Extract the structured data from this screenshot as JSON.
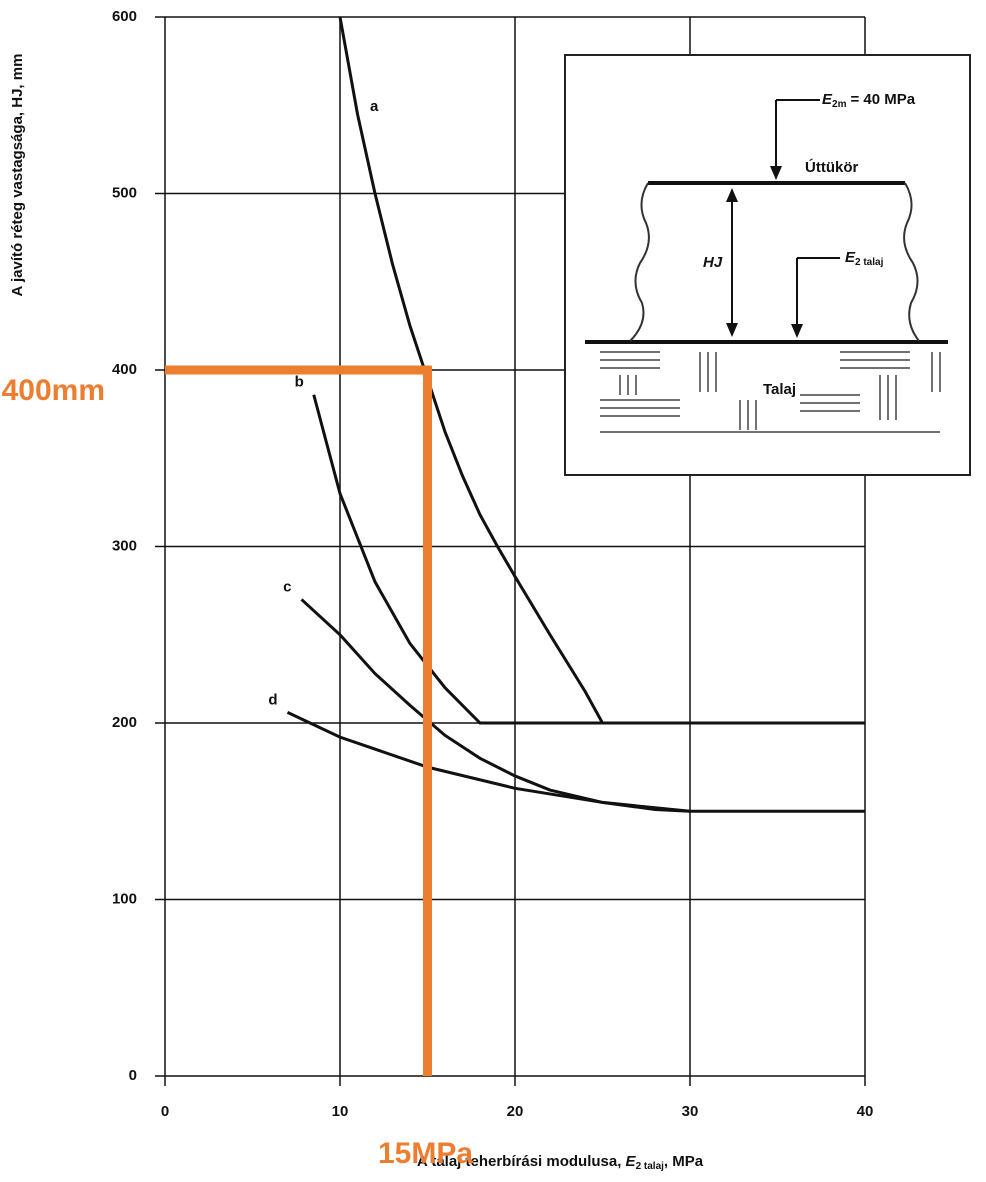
{
  "chart_data": {
    "type": "line",
    "ylabel": "A javító réteg vastagsága, HJ, mm",
    "xlabel": {
      "text": "A talaj teherbírási modulusa, ",
      "symbol": "E",
      "sub": "2 talaj",
      "unit": ", MPa"
    },
    "xlim": [
      0,
      40
    ],
    "xticks": [
      0,
      10,
      20,
      30,
      40
    ],
    "ylim": [
      0,
      600
    ],
    "yticks": [
      0,
      100,
      200,
      300,
      400,
      500,
      600
    ],
    "grid": true,
    "series": [
      {
        "name": "a",
        "color": "#111111",
        "x": [
          10,
          11,
          12,
          13,
          14,
          15,
          16,
          17,
          18,
          19,
          20,
          22,
          24,
          25,
          40
        ],
        "values": [
          600,
          545,
          500,
          460,
          425,
          395,
          365,
          340,
          318,
          300,
          283,
          250,
          218,
          200,
          200
        ]
      },
      {
        "name": "b",
        "color": "#111111",
        "x": [
          8.5,
          10,
          12,
          14,
          16,
          18,
          40
        ],
        "values": [
          386,
          330,
          280,
          245,
          220,
          200,
          200
        ]
      },
      {
        "name": "c",
        "color": "#111111",
        "x": [
          7.8,
          10,
          12,
          14,
          16,
          18,
          20,
          22,
          25,
          28,
          30,
          40
        ],
        "values": [
          270,
          250,
          228,
          210,
          193,
          180,
          170,
          162,
          155,
          151,
          150,
          150
        ]
      },
      {
        "name": "d",
        "color": "#111111",
        "x": [
          7,
          10,
          15,
          20,
          25,
          30
        ],
        "values": [
          206,
          192,
          175,
          163,
          155,
          150
        ]
      }
    ],
    "guide": {
      "x": 15,
      "y": 400,
      "color": "#ed7d31"
    },
    "annotations": [
      "400mm",
      "15MPa"
    ],
    "inset": {
      "load": {
        "symbol": "E",
        "sub": "2m",
        "rest": "= 40 MPa"
      },
      "surface": "Úttükör",
      "thickness": "HJ",
      "subgrade": {
        "symbol": "E",
        "sub": "2 talaj"
      },
      "soil": "Talaj"
    }
  }
}
